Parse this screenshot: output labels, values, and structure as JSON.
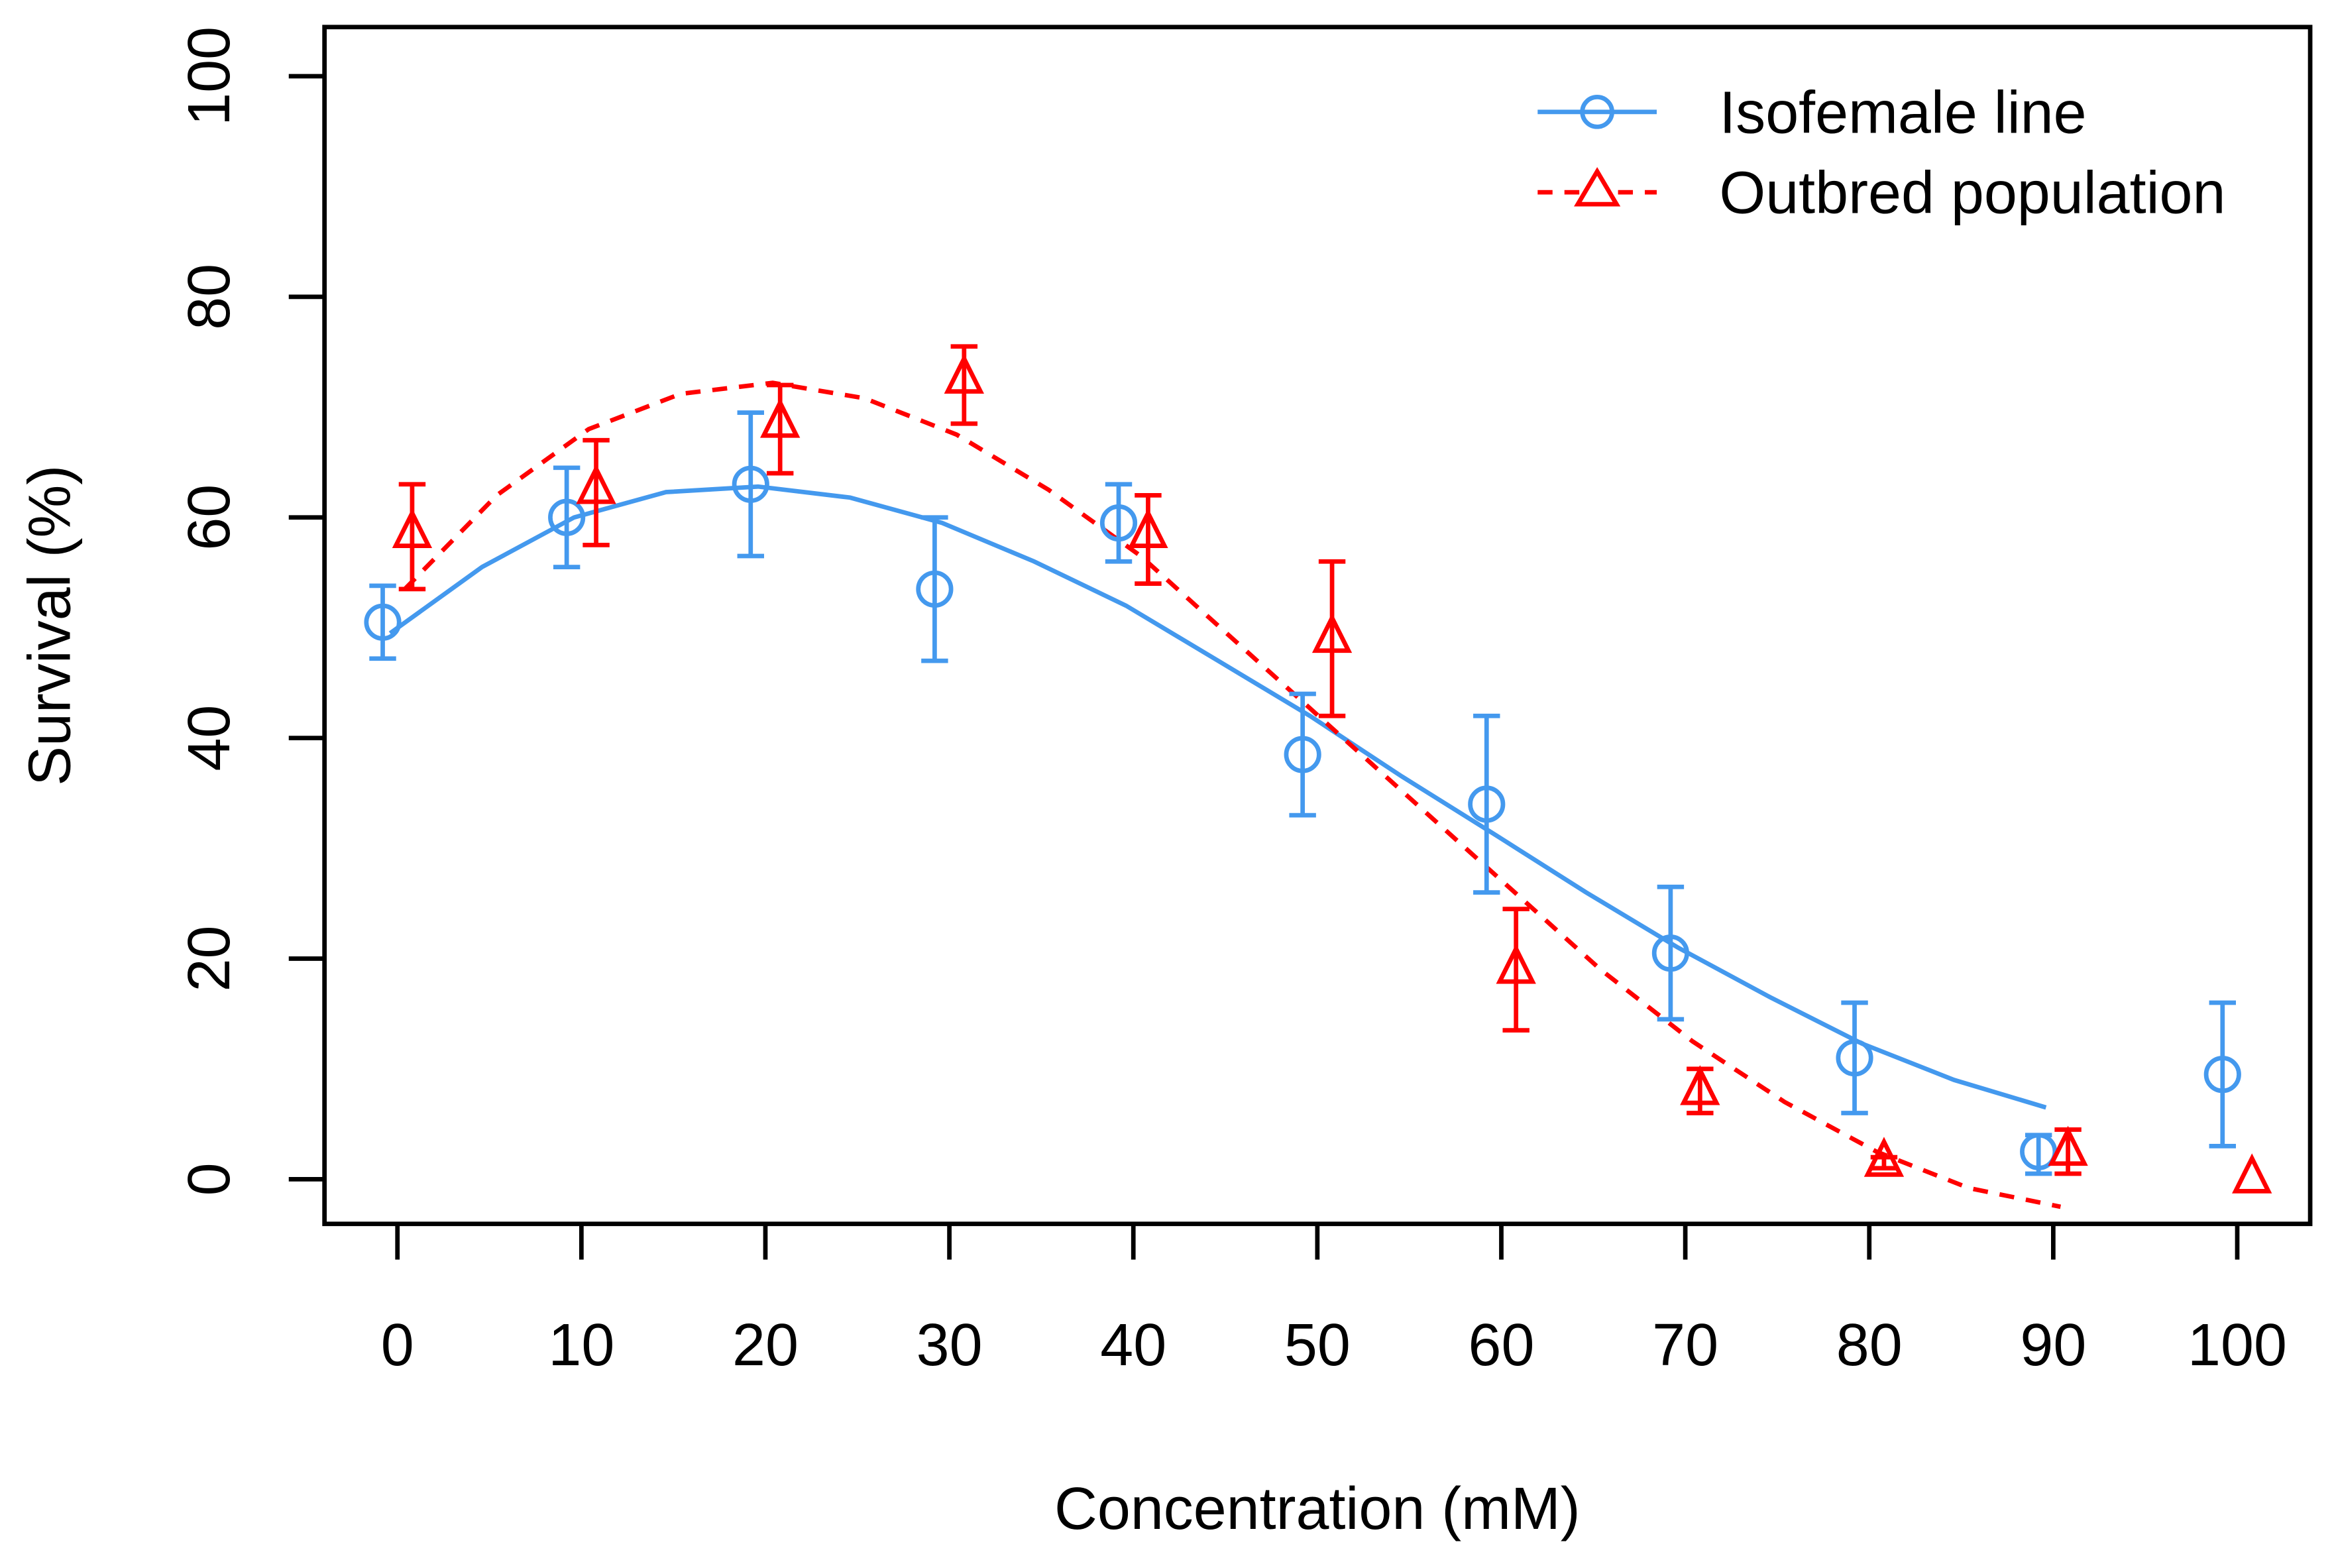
{
  "chart_data": {
    "type": "scatter",
    "title": "",
    "xlabel": "Concentration (mM)",
    "ylabel": "Survival (%)",
    "xlim": [
      -4,
      104
    ],
    "ylim": [
      -4,
      104
    ],
    "xticks": [
      "0",
      "10",
      "20",
      "30",
      "40",
      "50",
      "60",
      "70",
      "80",
      "90",
      "100"
    ],
    "xtick_values": [
      0,
      10,
      20,
      30,
      40,
      50,
      60,
      70,
      80,
      90,
      100
    ],
    "yticks": [
      "0",
      "20",
      "40",
      "60",
      "80",
      "100"
    ],
    "ytick_values": [
      0,
      20,
      40,
      60,
      80,
      100
    ],
    "grid": false,
    "legend_position": "top-right",
    "colors": {
      "isofemale": "#4499ee",
      "outbred": "#ff0000"
    },
    "series": [
      {
        "name": "Isofemale line",
        "marker": "circle",
        "line": "solid",
        "x": [
          0,
          10,
          20,
          30,
          40,
          50,
          60,
          70,
          80,
          90,
          100
        ],
        "y": [
          50.5,
          60,
          63,
          53.5,
          59.5,
          38.5,
          34,
          20.5,
          11,
          2.5,
          9.5
        ],
        "err_low": [
          47.2,
          55.5,
          56.5,
          47,
          56,
          33,
          26,
          14.5,
          6,
          0.5,
          3
        ],
        "err_high": [
          53.8,
          64.5,
          69.5,
          60,
          63,
          44,
          42,
          26.5,
          16,
          4,
          16
        ],
        "fit_x": [
          0,
          5,
          10,
          15,
          20,
          25,
          30,
          35,
          40,
          45,
          50,
          55,
          60,
          65,
          70,
          75,
          80,
          85,
          90
        ],
        "fit_y": [
          49.5,
          55.5,
          60,
          62.3,
          62.8,
          61.8,
          59.5,
          56,
          52,
          47,
          42,
          36.5,
          31.3,
          26,
          21,
          16.5,
          12.3,
          9,
          6.5
        ]
      },
      {
        "name": "Outbred population",
        "marker": "triangle",
        "line": "dashed",
        "x": [
          0,
          10,
          20,
          30,
          40,
          50,
          60,
          70,
          80,
          90,
          100
        ],
        "y": [
          58.5,
          62.5,
          68.5,
          72.5,
          58.5,
          49,
          19,
          8,
          1.5,
          2.5,
          0
        ],
        "err_low": [
          53.5,
          57.5,
          64,
          68.5,
          54,
          42,
          13.5,
          6,
          1,
          0.5,
          0
        ],
        "err_high": [
          63,
          67,
          72,
          75.5,
          62,
          56,
          24.5,
          10,
          2,
          4.5,
          0
        ],
        "fit_x": [
          0,
          5,
          10,
          15,
          20,
          25,
          30,
          35,
          40,
          45,
          50,
          55,
          60,
          65,
          70,
          75,
          80,
          85,
          90
        ],
        "fit_y": [
          53.5,
          62,
          68,
          71.2,
          72.2,
          70.8,
          67.5,
          62.5,
          56.5,
          49,
          41.5,
          34,
          26.5,
          19,
          12.5,
          7,
          2.5,
          -0.8,
          -2.5
        ]
      }
    ]
  }
}
